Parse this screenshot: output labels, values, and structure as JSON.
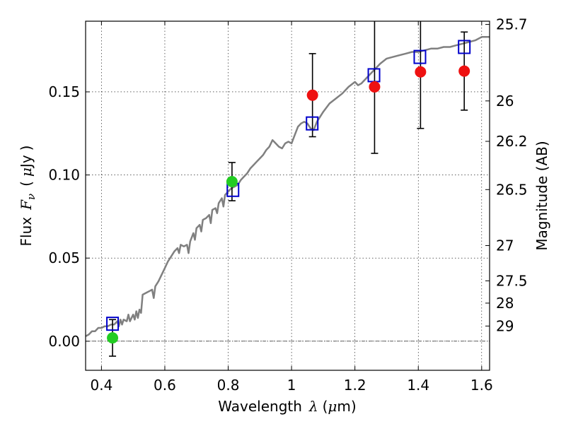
{
  "chart_data": {
    "type": "scatter",
    "xlabel": {
      "prefix": "Wavelength",
      "symbol": "λ",
      "unit_open": "(",
      "unit_mu": "μ",
      "unit_rest": "m)"
    },
    "ylabel": {
      "prefix": "Flux",
      "symbol": "F",
      "subscript": "ν",
      "unit_open": "(",
      "unit_mu": "μ",
      "unit_rest": "Jy",
      "unit_close": ")"
    },
    "y2label": "Magnitude (AB)",
    "xlim": [
      0.35,
      1.625
    ],
    "ylim": [
      -0.0175,
      0.1925
    ],
    "grid": true,
    "x_ticks": [
      {
        "value": 0.4,
        "label": "0.4"
      },
      {
        "value": 0.6,
        "label": "0.6"
      },
      {
        "value": 0.8,
        "label": "0.8"
      },
      {
        "value": 1.0,
        "label": "1"
      },
      {
        "value": 1.2,
        "label": "1.2"
      },
      {
        "value": 1.4,
        "label": "1.4"
      },
      {
        "value": 1.6,
        "label": "1.6"
      }
    ],
    "y_ticks": [
      {
        "value": 0.0,
        "label": "0.00"
      },
      {
        "value": 0.05,
        "label": "0.05"
      },
      {
        "value": 0.1,
        "label": "0.10"
      },
      {
        "value": 0.15,
        "label": "0.15"
      }
    ],
    "y2_ticks": [
      {
        "value": 25.7,
        "label": "25.7"
      },
      {
        "value": 26.0,
        "label": "26"
      },
      {
        "value": 26.2,
        "label": "26.2"
      },
      {
        "value": 26.5,
        "label": "26.5"
      },
      {
        "value": 27.0,
        "label": "27"
      },
      {
        "value": 27.5,
        "label": "27.5"
      },
      {
        "value": 28.0,
        "label": "28"
      },
      {
        "value": 29.0,
        "label": "29"
      }
    ],
    "zero_line": 0.0,
    "template_spectrum": {
      "color": "#808080",
      "points": [
        [
          0.35,
          0.003
        ],
        [
          0.36,
          0.004
        ],
        [
          0.37,
          0.006
        ],
        [
          0.38,
          0.006
        ],
        [
          0.39,
          0.008
        ],
        [
          0.4,
          0.008
        ],
        [
          0.41,
          0.009
        ],
        [
          0.42,
          0.009
        ],
        [
          0.43,
          0.01
        ],
        [
          0.44,
          0.01
        ],
        [
          0.45,
          0.012
        ],
        [
          0.455,
          0.009
        ],
        [
          0.46,
          0.013
        ],
        [
          0.465,
          0.01
        ],
        [
          0.47,
          0.013
        ],
        [
          0.48,
          0.012
        ],
        [
          0.485,
          0.016
        ],
        [
          0.49,
          0.012
        ],
        [
          0.5,
          0.016
        ],
        [
          0.505,
          0.013
        ],
        [
          0.51,
          0.018
        ],
        [
          0.515,
          0.014
        ],
        [
          0.52,
          0.019
        ],
        [
          0.525,
          0.017
        ],
        [
          0.53,
          0.028
        ],
        [
          0.54,
          0.029
        ],
        [
          0.55,
          0.03
        ],
        [
          0.56,
          0.031
        ],
        [
          0.565,
          0.026
        ],
        [
          0.57,
          0.033
        ],
        [
          0.58,
          0.036
        ],
        [
          0.59,
          0.04
        ],
        [
          0.6,
          0.044
        ],
        [
          0.61,
          0.048
        ],
        [
          0.62,
          0.051
        ],
        [
          0.63,
          0.054
        ],
        [
          0.64,
          0.056
        ],
        [
          0.645,
          0.053
        ],
        [
          0.65,
          0.058
        ],
        [
          0.66,
          0.057
        ],
        [
          0.67,
          0.058
        ],
        [
          0.675,
          0.053
        ],
        [
          0.68,
          0.06
        ],
        [
          0.69,
          0.065
        ],
        [
          0.695,
          0.061
        ],
        [
          0.7,
          0.068
        ],
        [
          0.71,
          0.07
        ],
        [
          0.715,
          0.066
        ],
        [
          0.72,
          0.073
        ],
        [
          0.73,
          0.074
        ],
        [
          0.74,
          0.076
        ],
        [
          0.745,
          0.071
        ],
        [
          0.75,
          0.079
        ],
        [
          0.76,
          0.08
        ],
        [
          0.765,
          0.077
        ],
        [
          0.77,
          0.083
        ],
        [
          0.78,
          0.086
        ],
        [
          0.785,
          0.081
        ],
        [
          0.79,
          0.088
        ],
        [
          0.8,
          0.09
        ],
        [
          0.81,
          0.092
        ],
        [
          0.82,
          0.093
        ],
        [
          0.83,
          0.094
        ],
        [
          0.84,
          0.097
        ],
        [
          0.85,
          0.099
        ],
        [
          0.86,
          0.101
        ],
        [
          0.87,
          0.104
        ],
        [
          0.88,
          0.106
        ],
        [
          0.89,
          0.108
        ],
        [
          0.9,
          0.11
        ],
        [
          0.91,
          0.112
        ],
        [
          0.92,
          0.115
        ],
        [
          0.93,
          0.117
        ],
        [
          0.94,
          0.121
        ],
        [
          0.95,
          0.119
        ],
        [
          0.96,
          0.117
        ],
        [
          0.97,
          0.116
        ],
        [
          0.98,
          0.119
        ],
        [
          0.99,
          0.12
        ],
        [
          1.0,
          0.119
        ],
        [
          1.01,
          0.124
        ],
        [
          1.02,
          0.129
        ],
        [
          1.03,
          0.131
        ],
        [
          1.04,
          0.132
        ],
        [
          1.05,
          0.131
        ],
        [
          1.06,
          0.128
        ],
        [
          1.07,
          0.127
        ],
        [
          1.08,
          0.132
        ],
        [
          1.09,
          0.135
        ],
        [
          1.1,
          0.138
        ],
        [
          1.12,
          0.143
        ],
        [
          1.14,
          0.146
        ],
        [
          1.16,
          0.149
        ],
        [
          1.18,
          0.153
        ],
        [
          1.2,
          0.156
        ],
        [
          1.21,
          0.154
        ],
        [
          1.22,
          0.155
        ],
        [
          1.24,
          0.159
        ],
        [
          1.26,
          0.163
        ],
        [
          1.28,
          0.167
        ],
        [
          1.3,
          0.17
        ],
        [
          1.32,
          0.171
        ],
        [
          1.34,
          0.172
        ],
        [
          1.36,
          0.173
        ],
        [
          1.38,
          0.174
        ],
        [
          1.4,
          0.174
        ],
        [
          1.42,
          0.175
        ],
        [
          1.44,
          0.176
        ],
        [
          1.46,
          0.176
        ],
        [
          1.48,
          0.177
        ],
        [
          1.5,
          0.177
        ],
        [
          1.52,
          0.178
        ],
        [
          1.54,
          0.179
        ],
        [
          1.56,
          0.18
        ],
        [
          1.58,
          0.181
        ],
        [
          1.6,
          0.183
        ],
        [
          1.625,
          0.183
        ]
      ]
    },
    "model_points": {
      "color": "#0000cc",
      "points": [
        [
          0.435,
          0.0105
        ],
        [
          0.815,
          0.091
        ],
        [
          1.065,
          0.131
        ],
        [
          1.26,
          0.16
        ],
        [
          1.405,
          0.171
        ],
        [
          1.545,
          0.177
        ]
      ]
    },
    "observed_points": [
      {
        "x": 0.435,
        "y": 0.002,
        "err": 0.011,
        "color": "#22cc22"
      },
      {
        "x": 0.812,
        "y": 0.096,
        "err": 0.0115,
        "color": "#22cc22"
      },
      {
        "x": 1.066,
        "y": 0.148,
        "err": 0.025,
        "color": "#ee1111"
      },
      {
        "x": 1.262,
        "y": 0.153,
        "err": 0.04,
        "color": "#ee1111"
      },
      {
        "x": 1.407,
        "y": 0.162,
        "err": 0.034,
        "color": "#ee1111"
      },
      {
        "x": 1.545,
        "y": 0.1625,
        "err": 0.0235,
        "color": "#ee1111"
      }
    ]
  }
}
